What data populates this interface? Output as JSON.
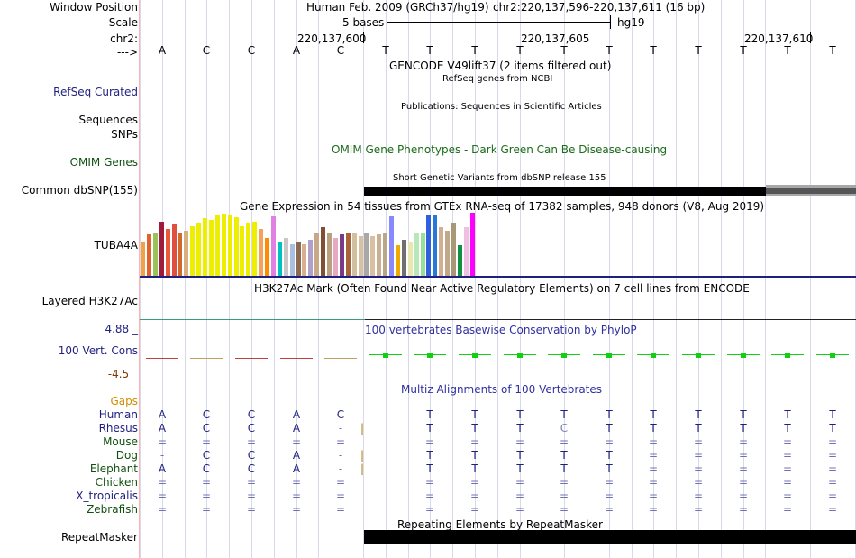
{
  "colors": {
    "label_blue": "#1f1f80",
    "label_green": "#105010",
    "label_brown": "#7a3d00",
    "gaps_orange": "#d28c00",
    "conservation_title": "#3030a0",
    "omim_green": "#1b6b1b",
    "phylop_green": "#10d010",
    "phylop_red": "#c04040"
  },
  "header": {
    "window_position_label": "Window Position",
    "assembly_title": "Human Feb. 2009 (GRCh37/hg19)",
    "position_text": "chr2:220,137,596-220,137,611 (16 bp)",
    "scale_label": "Scale",
    "scale_value": "5 bases",
    "scale_assembly": "hg19",
    "chrom_label": "chr2:",
    "coord_ticks": [
      "220,137,600",
      "220,137,605",
      "220,137,610"
    ],
    "strand_label": "--->"
  },
  "sequence": [
    "A",
    "C",
    "C",
    "A",
    "C",
    "T",
    "T",
    "T",
    "T",
    "T",
    "T",
    "T",
    "T",
    "T",
    "T",
    "T"
  ],
  "tracks": {
    "gencode_title": "GENCODE V49lift37 (2 items filtered out)",
    "refseq_subtitle": "RefSeq genes from NCBI",
    "refseq_label": "RefSeq Curated",
    "publications_title": "Publications: Sequences in Scientific Articles",
    "sequences_label": "Sequences",
    "snps_label": "SNPs",
    "omim_title": "OMIM Gene Phenotypes - Dark Green Can Be Disease-causing",
    "omim_label": "OMIM Genes",
    "dbsnp_title": "Short Genetic Variants from dbSNP release 155",
    "dbsnp_label": "Common dbSNP(155)",
    "gtex_title": "Gene Expression in 54 tissues from GTEx RNA-seq of 17382 samples, 948 donors (V8, Aug 2019)",
    "gtex_label": "TUBA4A",
    "h3k27ac_title": "H3K27Ac Mark (Often Found Near Active Regulatory Elements) on 7 cell lines from ENCODE",
    "h3k27ac_label": "Layered H3K27Ac",
    "cons_title": "100 vertebrates Basewise Conservation by PhyloP",
    "cons_label": "100 Vert. Cons",
    "cons_max": "4.88 _",
    "cons_min": "-4.5 _",
    "gaps_label": "Gaps",
    "multiz_title": "Multiz Alignments of 100 Vertebrates",
    "repeat_title": "Repeating Elements by RepeatMasker",
    "repeat_label": "RepeatMasker"
  },
  "gtex_bars": [
    {
      "color": "#f4a045",
      "value": 0.55
    },
    {
      "color": "#e06030",
      "value": 0.68
    },
    {
      "color": "#98c35a",
      "value": 0.7
    },
    {
      "color": "#a01a3a",
      "value": 0.9
    },
    {
      "color": "#e85a3a",
      "value": 0.78
    },
    {
      "color": "#e05040",
      "value": 0.85
    },
    {
      "color": "#d06a30",
      "value": 0.72
    },
    {
      "color": "#d8b080",
      "value": 0.75
    },
    {
      "color": "#eeee00",
      "value": 0.82
    },
    {
      "color": "#eeee00",
      "value": 0.88
    },
    {
      "color": "#eeee00",
      "value": 0.95
    },
    {
      "color": "#eeee00",
      "value": 0.92
    },
    {
      "color": "#eeee00",
      "value": 1.0
    },
    {
      "color": "#eeee00",
      "value": 1.02
    },
    {
      "color": "#eeee00",
      "value": 1.0
    },
    {
      "color": "#eeee00",
      "value": 0.96
    },
    {
      "color": "#eeee00",
      "value": 0.82
    },
    {
      "color": "#eeee00",
      "value": 0.88
    },
    {
      "color": "#eeee00",
      "value": 0.9
    },
    {
      "color": "#f4a060",
      "value": 0.78
    },
    {
      "color": "#ff8c00",
      "value": 0.62
    },
    {
      "color": "#e080e0",
      "value": 0.98
    },
    {
      "color": "#00c0c0",
      "value": 0.55
    },
    {
      "color": "#c8c8c8",
      "value": 0.62
    },
    {
      "color": "#aac0e0",
      "value": 0.52
    },
    {
      "color": "#8a6a50",
      "value": 0.56
    },
    {
      "color": "#d8b090",
      "value": 0.52
    },
    {
      "color": "#b0a0c8",
      "value": 0.6
    },
    {
      "color": "#c8a888",
      "value": 0.72
    },
    {
      "color": "#805030",
      "value": 0.8
    },
    {
      "color": "#b8a080",
      "value": 0.7
    },
    {
      "color": "#e8a8c0",
      "value": 0.62
    },
    {
      "color": "#7a3a88",
      "value": 0.68
    },
    {
      "color": "#a86438",
      "value": 0.72
    },
    {
      "color": "#d0c0a0",
      "value": 0.7
    },
    {
      "color": "#d8c0a0",
      "value": 0.65
    },
    {
      "color": "#a8a8a8",
      "value": 0.72
    },
    {
      "color": "#d8c0a0",
      "value": 0.65
    },
    {
      "color": "#c8b090",
      "value": 0.68
    },
    {
      "color": "#b8a888",
      "value": 0.72
    },
    {
      "color": "#8888ff",
      "value": 0.98
    },
    {
      "color": "#eeaa00",
      "value": 0.5
    },
    {
      "color": "#707070",
      "value": 0.6
    },
    {
      "color": "#e8e8b0",
      "value": 0.55
    },
    {
      "color": "#b8e8b8",
      "value": 0.72
    },
    {
      "color": "#98e098",
      "value": 0.72
    },
    {
      "color": "#3060e0",
      "value": 1.0
    },
    {
      "color": "#2878d8",
      "value": 1.0
    },
    {
      "color": "#d0b090",
      "value": 0.8
    },
    {
      "color": "#c0a888",
      "value": 0.75
    },
    {
      "color": "#a89878",
      "value": 0.88
    },
    {
      "color": "#109040",
      "value": 0.5
    },
    {
      "color": "#f0c0e0",
      "value": 0.8
    },
    {
      "color": "#ff00ff",
      "value": 1.04
    }
  ],
  "species": [
    {
      "name": "Human",
      "color": "#1f1f80",
      "bases": [
        "A",
        "C",
        "C",
        "A",
        "C",
        "",
        "T",
        "T",
        "T",
        "T",
        "T",
        "T",
        "T",
        "T",
        "T",
        "T"
      ]
    },
    {
      "name": "Rhesus",
      "color": "#1f1f80",
      "bases": [
        "A",
        "C",
        "C",
        "A",
        "-",
        "|",
        "T",
        "T",
        "T",
        "C",
        "T",
        "T",
        "T",
        "T",
        "T",
        "T"
      ]
    },
    {
      "name": "Mouse",
      "color": "#105010",
      "bases": [
        "=",
        "=",
        "=",
        "=",
        "=",
        "",
        "=",
        "=",
        "=",
        "=",
        "=",
        "=",
        "=",
        "=",
        "=",
        "="
      ]
    },
    {
      "name": "Dog",
      "color": "#105010",
      "bases": [
        "-",
        "C",
        "C",
        "A",
        "-",
        "|",
        "T",
        "T",
        "T",
        "T",
        "T",
        "=",
        "=",
        "=",
        "=",
        "="
      ]
    },
    {
      "name": "Elephant",
      "color": "#105010",
      "bases": [
        "A",
        "C",
        "C",
        "A",
        "-",
        "|",
        "T",
        "T",
        "T",
        "T",
        "T",
        "=",
        "=",
        "=",
        "=",
        "="
      ]
    },
    {
      "name": "Chicken",
      "color": "#105010",
      "bases": [
        "=",
        "=",
        "=",
        "=",
        "=",
        "",
        "=",
        "=",
        "=",
        "=",
        "=",
        "=",
        "=",
        "=",
        "=",
        "="
      ]
    },
    {
      "name": "X_tropicalis",
      "color": "#1f1f80",
      "bases": [
        "=",
        "=",
        "=",
        "=",
        "=",
        "",
        "=",
        "=",
        "=",
        "=",
        "=",
        "=",
        "=",
        "=",
        "=",
        "="
      ]
    },
    {
      "name": "Zebrafish",
      "color": "#105010",
      "bases": [
        "=",
        "=",
        "=",
        "=",
        "=",
        "",
        "=",
        "=",
        "=",
        "=",
        "=",
        "=",
        "=",
        "=",
        "=",
        "="
      ]
    }
  ]
}
